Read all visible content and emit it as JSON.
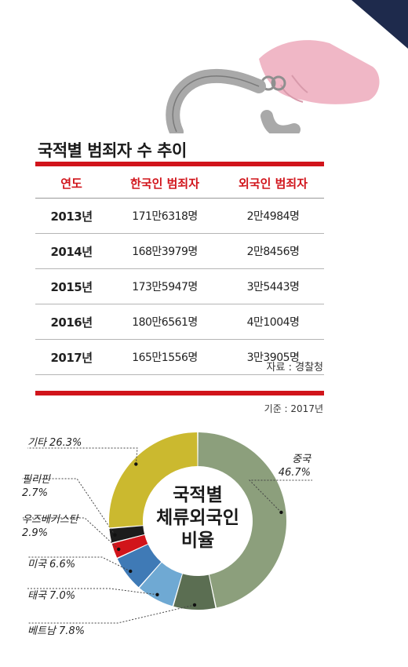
{
  "table": {
    "title": "국적별 범죄자 수 추이",
    "headers": [
      "연도",
      "한국인 범죄자",
      "외국인 범죄자"
    ],
    "rows": [
      [
        "2013년",
        "171만6318명",
        "2만4984명"
      ],
      [
        "2014년",
        "168만3979명",
        "2만8456명"
      ],
      [
        "2015년",
        "173만5947명",
        "3만5443명"
      ],
      [
        "2016년",
        "180만6561명",
        "4만1004명"
      ],
      [
        "2017년",
        "165만1556명",
        "3만3905명"
      ]
    ],
    "source": "자료 : 경찰청"
  },
  "donut_basis": "기준 : 2017년",
  "chart_data": {
    "type": "pie",
    "style": "donut",
    "center_label": [
      "국적별",
      "체류외국인",
      "비율"
    ],
    "slices": [
      {
        "name": "중국",
        "value": 46.7,
        "label": "46.7%",
        "color": "#8c9f7c"
      },
      {
        "name": "베트남",
        "value": 7.8,
        "label": "7.8%",
        "color": "#5b6e52"
      },
      {
        "name": "태국",
        "value": 7.0,
        "label": "7.0%",
        "color": "#6fa9d3"
      },
      {
        "name": "미국",
        "value": 6.6,
        "label": "6.6%",
        "color": "#3f7ab6"
      },
      {
        "name": "우즈베키스탄",
        "value": 2.9,
        "label": "2.9%",
        "color": "#d1141b"
      },
      {
        "name": "필리핀",
        "value": 2.7,
        "label": "2.7%",
        "color": "#1c1c1c"
      },
      {
        "name": "기타",
        "value": 26.3,
        "label": "26.3%",
        "color": "#cbb92f"
      }
    ],
    "colors": {
      "accent": "#d1141b",
      "handcuff": "#ababab",
      "hand": "#f0b7c6",
      "sleeve": "#1e2a4c"
    }
  }
}
